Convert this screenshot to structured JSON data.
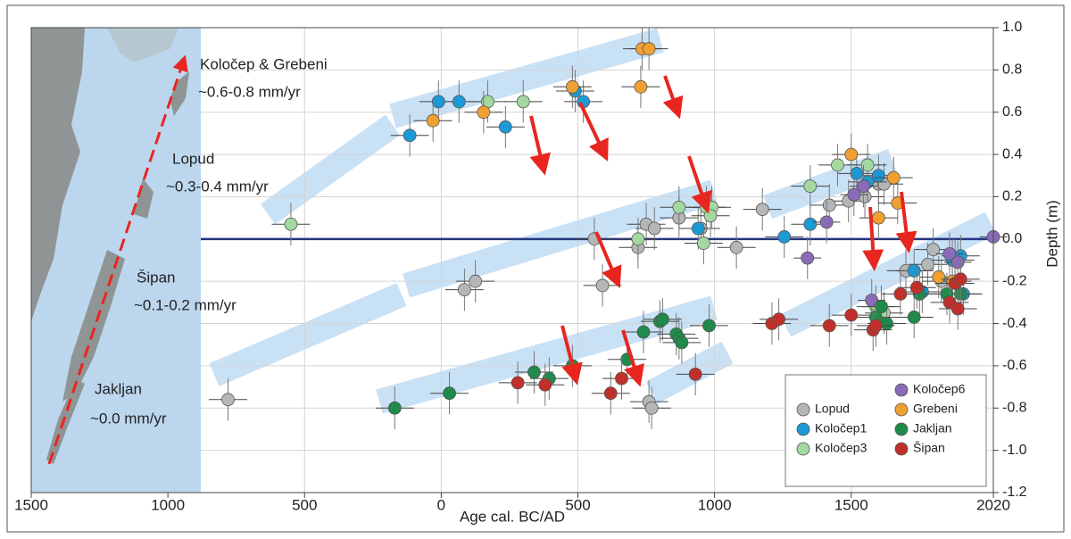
{
  "chart_data": {
    "type": "scatter",
    "x_label": "Age cal. BC/AD",
    "y_label": "Depth (m)",
    "xlim": [
      -1500,
      2020
    ],
    "ylim": [
      -1.2,
      1.0
    ],
    "xticks": [
      {
        "value": -1500,
        "label": "1500"
      },
      {
        "value": -1000,
        "label": "1000"
      },
      {
        "value": -500,
        "label": "500"
      },
      0,
      500,
      1000,
      1500,
      2020
    ],
    "yticks": [
      {
        "value": 1.0,
        "label": "1.0"
      },
      0.8,
      0.6,
      0.4,
      0.2,
      {
        "value": 0.0,
        "label": "0.0"
      },
      -0.2,
      -0.4,
      -0.6,
      -0.8,
      {
        "value": -1.0,
        "label": "-1.0"
      },
      -1.2
    ],
    "grid": true,
    "hline": 0,
    "legend": "lower right",
    "annotations": [
      "Koločep & Grebeni",
      "~0.6-0.8 mm/yr",
      "Lopud",
      "~0.3-0.4 mm/yr",
      "Šipan",
      "~0.1-0.2 mm/yr",
      "Jakljan",
      "~0.0 mm/yr"
    ],
    "series": [
      {
        "name": "Lopud",
        "color": "#b4b6b8",
        "xerr": 70,
        "yerr": 0.1,
        "x": [
          -780,
          85,
          125,
          560,
          590,
          750,
          720,
          780,
          870,
          950,
          1080,
          1175,
          1420,
          1490,
          1550,
          1600,
          1620,
          1700,
          1780,
          1800,
          1830,
          1880,
          760,
          770
        ],
        "values": [
          -0.76,
          -0.24,
          -0.2,
          0.0,
          -0.22,
          0.07,
          -0.04,
          0.05,
          0.1,
          0.05,
          -0.04,
          0.14,
          0.16,
          0.18,
          0.2,
          0.26,
          0.26,
          -0.15,
          -0.12,
          -0.05,
          -0.2,
          -0.1,
          -0.77,
          -0.8
        ]
      },
      {
        "name": "Koločep1",
        "color": "#1b9ad6",
        "xerr": 70,
        "yerr": 0.1,
        "x": [
          -115,
          -10,
          65,
          235,
          490,
          520,
          940,
          1255,
          1350,
          1520,
          1560,
          1600,
          1730,
          1760,
          1870,
          1900,
          1910
        ],
        "values": [
          0.49,
          0.65,
          0.65,
          0.53,
          0.7,
          0.65,
          0.05,
          0.01,
          0.07,
          0.31,
          0.27,
          0.3,
          -0.15,
          -0.25,
          -0.1,
          -0.08,
          -0.26
        ]
      },
      {
        "name": "Koločep3",
        "color": "#a3d9a0",
        "xerr": 70,
        "yerr": 0.1,
        "x": [
          -550,
          170,
          300,
          870,
          970,
          990,
          985,
          960,
          1350,
          1450,
          1560,
          720,
          1590,
          1620
        ],
        "values": [
          0.07,
          0.65,
          0.65,
          0.15,
          0.15,
          0.15,
          0.11,
          -0.02,
          0.25,
          0.35,
          0.35,
          0.0,
          -0.32,
          -0.35
        ]
      },
      {
        "name": "Koločep6",
        "color": "#8a6bb8",
        "xerr": 50,
        "yerr": 0.1,
        "x": [
          1340,
          1410,
          1510,
          1545,
          1575,
          1860,
          2020,
          1890
        ],
        "values": [
          -0.09,
          0.08,
          0.21,
          0.25,
          -0.29,
          -0.07,
          0.01,
          -0.11
        ]
      },
      {
        "name": "Grebeni",
        "color": "#f0a030",
        "xerr": 70,
        "yerr": 0.1,
        "x": [
          -30,
          155,
          480,
          735,
          760,
          730,
          1500,
          1600,
          1655,
          1670,
          1820,
          1870
        ],
        "values": [
          0.56,
          0.6,
          0.72,
          0.9,
          0.9,
          0.72,
          0.4,
          0.1,
          0.29,
          0.17,
          -0.18,
          -0.2
        ]
      },
      {
        "name": "Jakljan",
        "color": "#1f8a4a",
        "xerr": 70,
        "yerr": 0.1,
        "x": [
          -170,
          30,
          340,
          395,
          480,
          680,
          740,
          800,
          810,
          860,
          870,
          880,
          980,
          1590,
          1610,
          1630,
          1730,
          1750,
          1850,
          1900
        ],
        "values": [
          -0.8,
          -0.73,
          -0.63,
          -0.66,
          -0.6,
          -0.57,
          -0.44,
          -0.39,
          -0.38,
          -0.45,
          -0.47,
          -0.49,
          -0.41,
          -0.37,
          -0.32,
          -0.4,
          -0.37,
          -0.26,
          -0.26,
          -0.26
        ]
      },
      {
        "name": "Šipan",
        "color": "#c0302a",
        "xerr": 70,
        "yerr": 0.1,
        "x": [
          280,
          380,
          620,
          660,
          1210,
          1235,
          1420,
          1500,
          1580,
          1590,
          1680,
          1740,
          1860,
          1880,
          1890,
          1900,
          930
        ],
        "values": [
          -0.68,
          -0.69,
          -0.73,
          -0.66,
          -0.4,
          -0.38,
          -0.41,
          -0.36,
          -0.43,
          -0.41,
          -0.26,
          -0.23,
          -0.3,
          -0.21,
          -0.33,
          -0.19,
          -0.64
        ]
      }
    ]
  }
}
